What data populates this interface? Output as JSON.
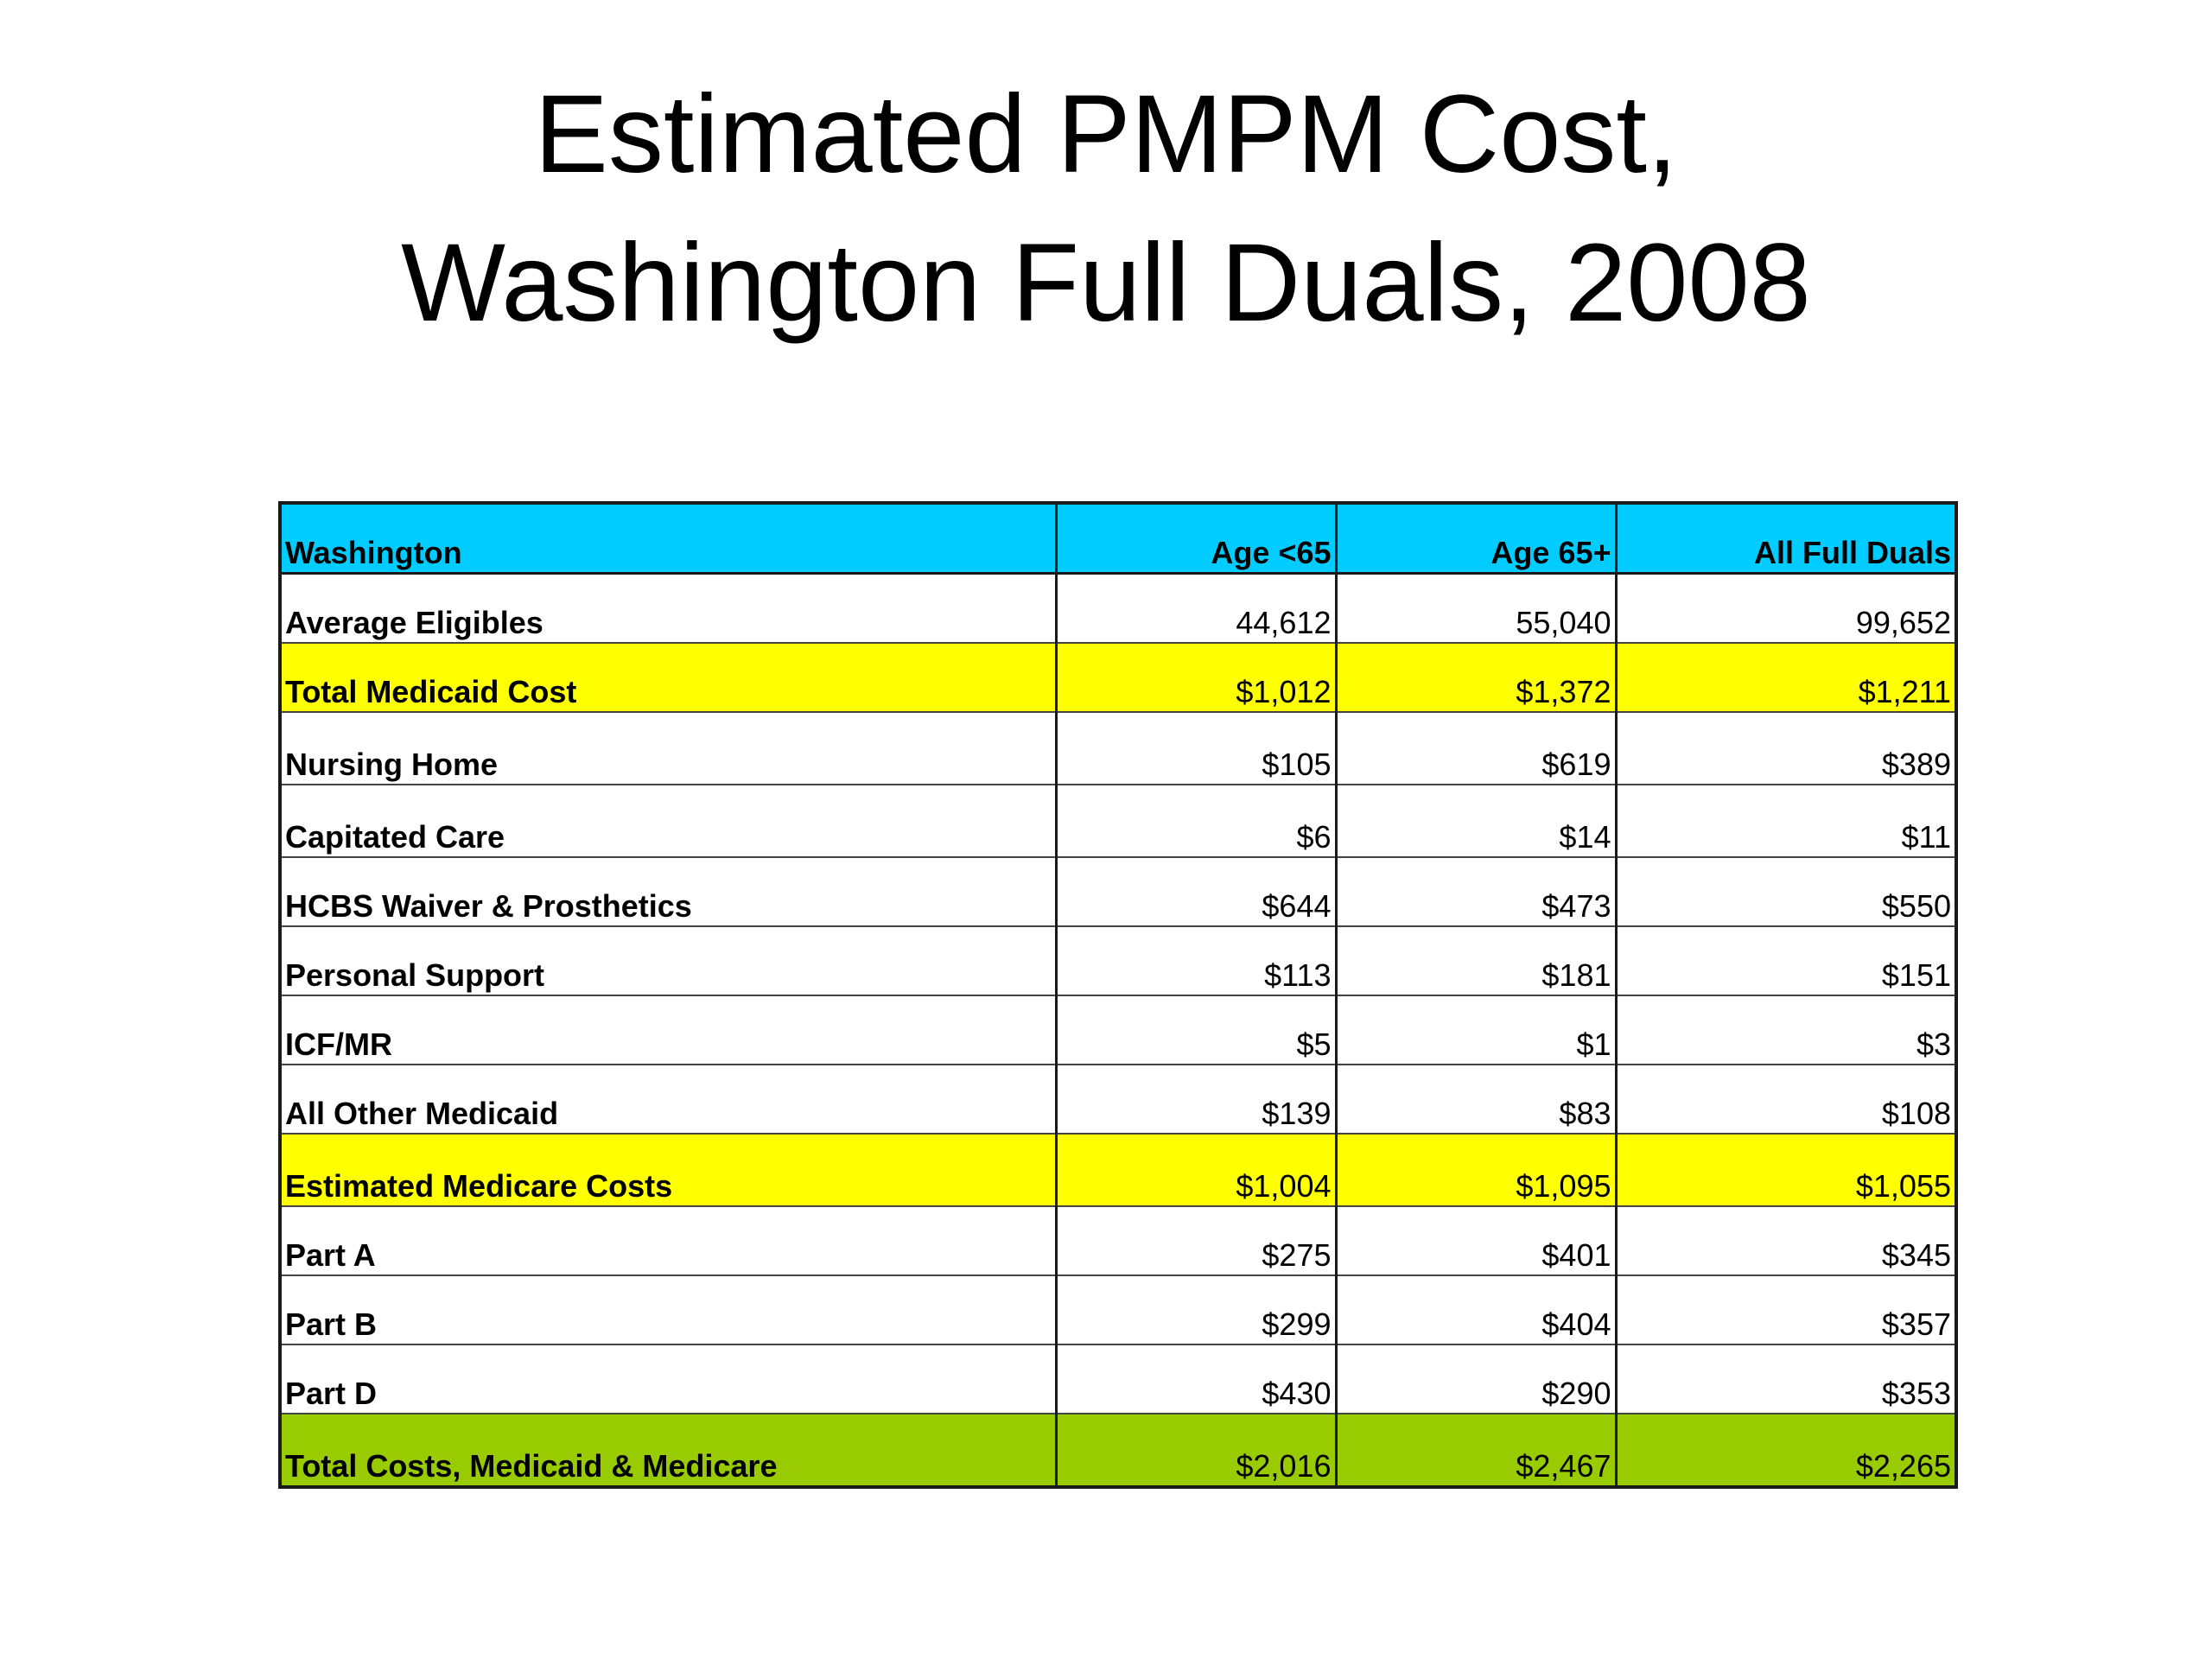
{
  "title": {
    "line1": "Estimated PMPM Cost,",
    "line2": "Washington Full Duals, 2008"
  },
  "table": {
    "header": [
      "Washington",
      "Age <65",
      "Age 65+",
      "All Full Duals"
    ],
    "rows": [
      {
        "label": "Average Eligibles",
        "values": [
          "44,612",
          "55,040",
          "99,652"
        ],
        "style": "plain"
      },
      {
        "label": "Total Medicaid Cost",
        "values": [
          "$1,012",
          "$1,372",
          "$1,211"
        ],
        "style": "yellow"
      },
      {
        "label": "Nursing Home",
        "values": [
          "$105",
          "$619",
          "$389"
        ],
        "style": "plain"
      },
      {
        "label": "Capitated Care",
        "values": [
          "$6",
          "$14",
          "$11"
        ],
        "style": "plain"
      },
      {
        "label": "HCBS Waiver & Prosthetics",
        "values": [
          "$644",
          "$473",
          "$550"
        ],
        "style": "plain"
      },
      {
        "label": "Personal Support",
        "values": [
          "$113",
          "$181",
          "$151"
        ],
        "style": "plain"
      },
      {
        "label": "ICF/MR",
        "values": [
          "$5",
          "$1",
          "$3"
        ],
        "style": "plain"
      },
      {
        "label": "All Other Medicaid",
        "values": [
          "$139",
          "$83",
          "$108"
        ],
        "style": "plain"
      },
      {
        "label": "Estimated Medicare Costs",
        "values": [
          "$1,004",
          "$1,095",
          "$1,055"
        ],
        "style": "yellow"
      },
      {
        "label": "Part A",
        "values": [
          "$275",
          "$401",
          "$345"
        ],
        "style": "plain"
      },
      {
        "label": "Part B",
        "values": [
          "$299",
          "$404",
          "$357"
        ],
        "style": "plain"
      },
      {
        "label": "Part D",
        "values": [
          "$430",
          "$290",
          "$353"
        ],
        "style": "plain"
      },
      {
        "label": "Total Costs, Medicaid & Medicare",
        "values": [
          "$2,016",
          "$2,467",
          "$2,265"
        ],
        "style": "green"
      }
    ]
  },
  "colors": {
    "header_bg": "#00ccff",
    "highlight_yellow": "#ffff00",
    "highlight_green": "#99cc00"
  }
}
